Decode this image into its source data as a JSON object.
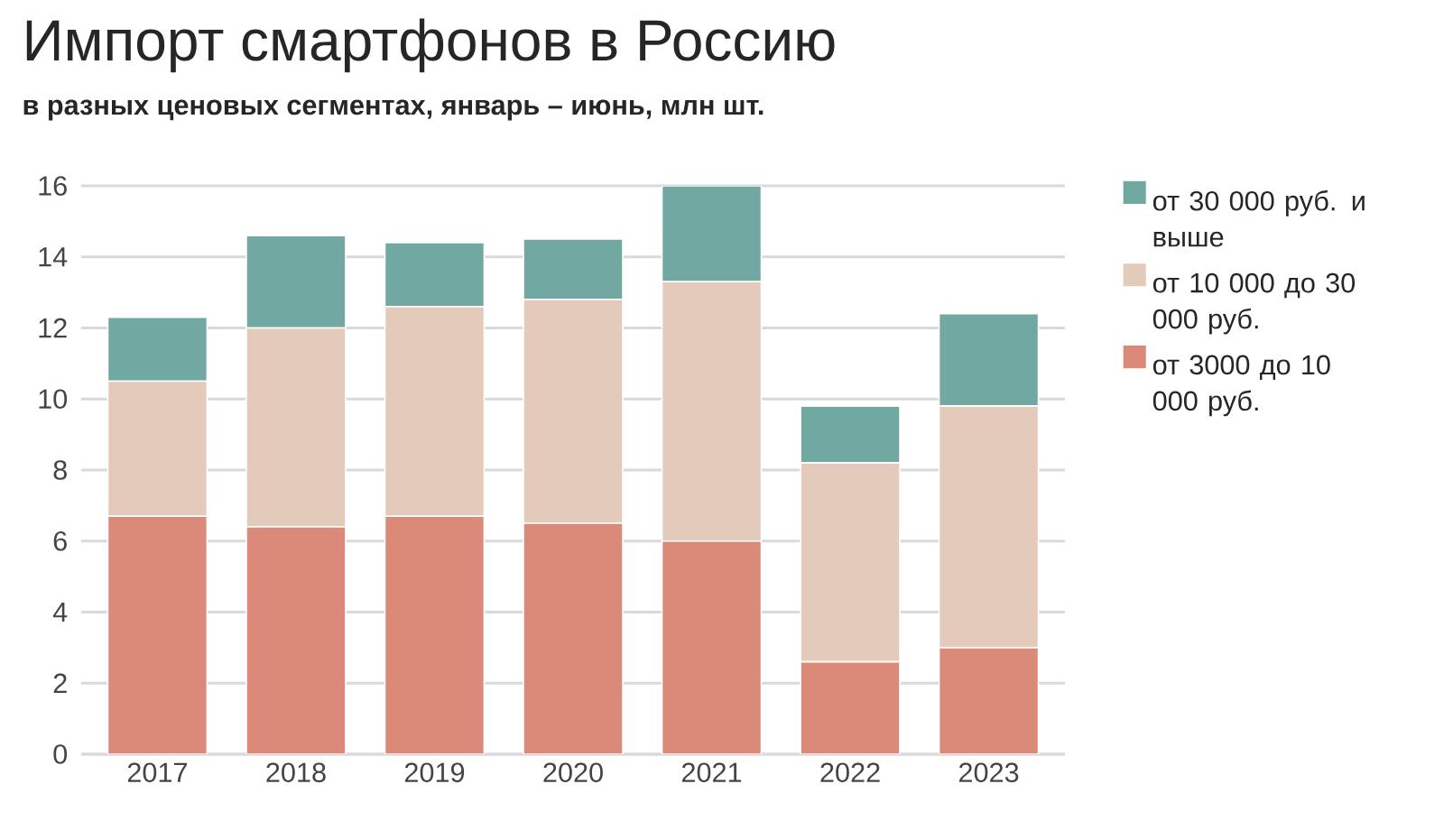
{
  "chart_data": {
    "type": "bar",
    "stacked": true,
    "title": "Импорт смартфонов в Россию",
    "subtitle": "в разных ценовых сегментах, январь – июнь, млн шт.",
    "categories": [
      "2017",
      "2018",
      "2019",
      "2020",
      "2021",
      "2022",
      "2023"
    ],
    "series": [
      {
        "name": "от 3000 до 10 000 руб.",
        "color": "#db8a7a",
        "values": [
          6.7,
          6.4,
          6.7,
          6.5,
          6.0,
          2.6,
          3.0
        ]
      },
      {
        "name": "от 10 000 до 30 000 руб.",
        "color": "#e4cabb",
        "values": [
          3.8,
          5.6,
          5.9,
          6.3,
          7.3,
          5.6,
          6.8
        ]
      },
      {
        "name": "от 30 000 руб. и выше",
        "color": "#71a8a1",
        "values": [
          1.8,
          2.6,
          1.8,
          1.7,
          2.7,
          1.6,
          2.6
        ]
      }
    ],
    "ylim": [
      0,
      16
    ],
    "yticks": [
      0,
      2,
      4,
      6,
      8,
      10,
      12,
      14,
      16
    ],
    "grid": "y",
    "legend": "right"
  }
}
